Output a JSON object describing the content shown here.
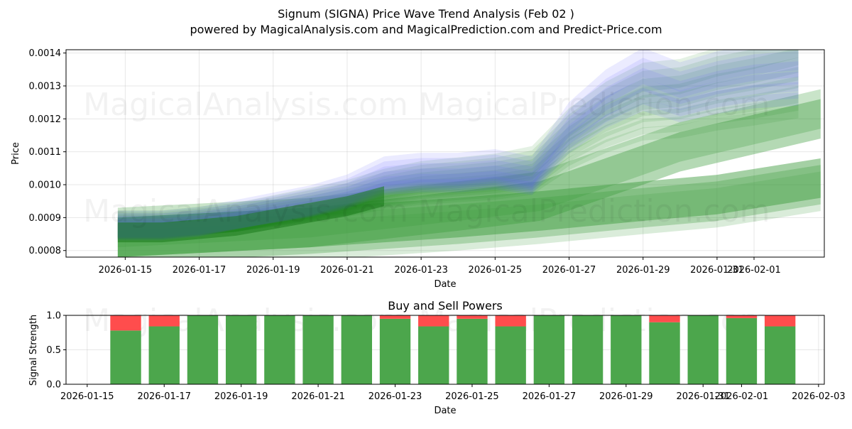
{
  "title_line1": "Signum (SIGNA) Price Wave Trend Analysis (Feb 02 )",
  "title_line2": "powered by MagicalAnalysis.com and MagicalPrediction.com and Predict-Price.com",
  "watermarks": [
    "MagicalAnalysis.com",
    "MagicalPrediction.com"
  ],
  "chart_data": [
    {
      "type": "area",
      "title": "",
      "xlabel": "Date",
      "ylabel": "Price",
      "ylim": [
        0.00078,
        0.00141
      ],
      "xlim": [
        "2026-01-14",
        "2026-02-03"
      ],
      "x_ticks": [
        "2026-01-15",
        "2026-01-17",
        "2026-01-19",
        "2026-01-21",
        "2026-01-23",
        "2026-01-25",
        "2026-01-27",
        "2026-01-29",
        "2026-01-31",
        "2026-02-01"
      ],
      "y_ticks": [
        "0.0008",
        "0.0009",
        "0.0010",
        "0.0011",
        "0.0012",
        "0.0013",
        "0.0014"
      ],
      "grid": true,
      "series": [
        {
          "name": "blue wave band (price trend)",
          "color": "#6464ff",
          "x": [
            14.8,
            16,
            17,
            18,
            19,
            20,
            21,
            22,
            23,
            24,
            25,
            26,
            27,
            28,
            29,
            30,
            31,
            32,
            33.2
          ],
          "values": [
            0.00087,
            0.00087,
            0.00088,
            0.0009,
            0.00092,
            0.00094,
            0.00097,
            0.00102,
            0.00103,
            0.00103,
            0.00104,
            0.00102,
            0.00117,
            0.00126,
            0.00132,
            0.00128,
            0.00131,
            0.00133,
            0.00134
          ],
          "band": 2e-05
        },
        {
          "name": "green wave band (short-term)",
          "color": "#228b22",
          "x": [
            14.8,
            16,
            17,
            18,
            19,
            20,
            21,
            22,
            23,
            24,
            25,
            26,
            27,
            28,
            29,
            30,
            31,
            32,
            33.2
          ],
          "values": [
            0.00087,
            0.00087,
            0.00088,
            0.00089,
            0.00091,
            0.00093,
            0.00095,
            0.00098,
            0.001,
            0.00101,
            0.00102,
            0.00104,
            0.00114,
            0.00121,
            0.00126,
            0.00127,
            0.0013,
            0.00132,
            0.00135
          ],
          "band": 2e-05
        },
        {
          "name": "green wave band (mid-term, upper)",
          "color": "#3c9b3c",
          "x": [
            14.8,
            20,
            24,
            26.2,
            29,
            30,
            33.8
          ],
          "values": [
            0.00087,
            0.0009,
            0.00095,
            0.00098,
            0.00109,
            0.00113,
            0.00123
          ],
          "band": 6e-05
        },
        {
          "name": "green wave band (long-term, lower)",
          "color": "#3c9b3c",
          "x": [
            14.8,
            20,
            24,
            26.2,
            29,
            31,
            33.8
          ],
          "values": [
            0.00082,
            0.00085,
            0.00088,
            0.0009,
            0.00093,
            0.00095,
            0.001
          ],
          "band": 6e-05
        }
      ]
    },
    {
      "type": "bar",
      "title": "Buy and Sell Powers",
      "xlabel": "Date",
      "ylabel": "Signal Strength",
      "ylim": [
        0.0,
        1.0
      ],
      "xlim": [
        "2026-01-15",
        "2026-02-03"
      ],
      "x_ticks": [
        "2026-01-15",
        "2026-01-17",
        "2026-01-19",
        "2026-01-21",
        "2026-01-23",
        "2026-01-25",
        "2026-01-27",
        "2026-01-29",
        "2026-01-31",
        "2026-02-01",
        "2026-02-03"
      ],
      "y_ticks": [
        "0.0",
        "0.5",
        "1.0"
      ],
      "grid": true,
      "categories": [
        "2026-01-16",
        "2026-01-17",
        "2026-01-18",
        "2026-01-19",
        "2026-01-20",
        "2026-01-21",
        "2026-01-22",
        "2026-01-23",
        "2026-01-24",
        "2026-01-25",
        "2026-01-26",
        "2026-01-27",
        "2026-01-28",
        "2026-01-29",
        "2026-01-30",
        "2026-01-31",
        "2026-02-01",
        "2026-02-02"
      ],
      "series": [
        {
          "name": "Buy",
          "color": "#4ca64c",
          "values": [
            0.78,
            0.84,
            1.0,
            1.0,
            1.0,
            1.0,
            1.0,
            0.95,
            0.84,
            0.95,
            0.84,
            1.0,
            1.0,
            1.0,
            0.9,
            1.0,
            0.96,
            0.84
          ]
        },
        {
          "name": "Sell",
          "color": "#ff4d4d",
          "values": [
            0.22,
            0.16,
            0.0,
            0.0,
            0.0,
            0.0,
            0.0,
            0.05,
            0.16,
            0.05,
            0.16,
            0.0,
            0.0,
            0.0,
            0.1,
            0.0,
            0.04,
            0.16
          ]
        }
      ]
    }
  ]
}
